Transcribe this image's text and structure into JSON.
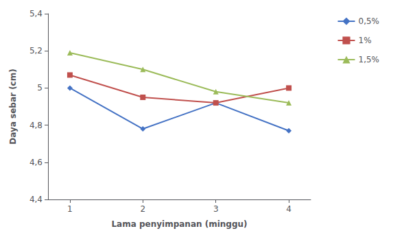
{
  "chart_data": {
    "type": "line",
    "x": [
      1,
      2,
      3,
      4
    ],
    "series": [
      {
        "name": "0,5%",
        "color": "#4472C4",
        "marker": "diamond",
        "values": [
          5.0,
          4.78,
          4.92,
          4.77
        ]
      },
      {
        "name": "1%",
        "color": "#C0504D",
        "marker": "square",
        "values": [
          5.07,
          4.95,
          4.92,
          5.0
        ]
      },
      {
        "name": "1,5%",
        "color": "#9BBB59",
        "marker": "triangle",
        "values": [
          5.19,
          5.1,
          4.98,
          4.92
        ]
      }
    ],
    "xlabel": "Lama penyimpanan (minggu)",
    "ylabel": "Daya sebar (cm)",
    "xlim": [
      0.7,
      4.3
    ],
    "xticks": [
      1,
      2,
      3,
      4
    ],
    "ylim": [
      4.4,
      5.4
    ],
    "yticks": [
      {
        "value": 4.4,
        "label": "4,4"
      },
      {
        "value": 4.6,
        "label": "4,6"
      },
      {
        "value": 4.8,
        "label": "4,8"
      },
      5,
      {
        "value": 5.2,
        "label": "5,2"
      },
      {
        "value": 5.4,
        "label": "5,4"
      }
    ],
    "grid": false,
    "legend": "upper right"
  }
}
